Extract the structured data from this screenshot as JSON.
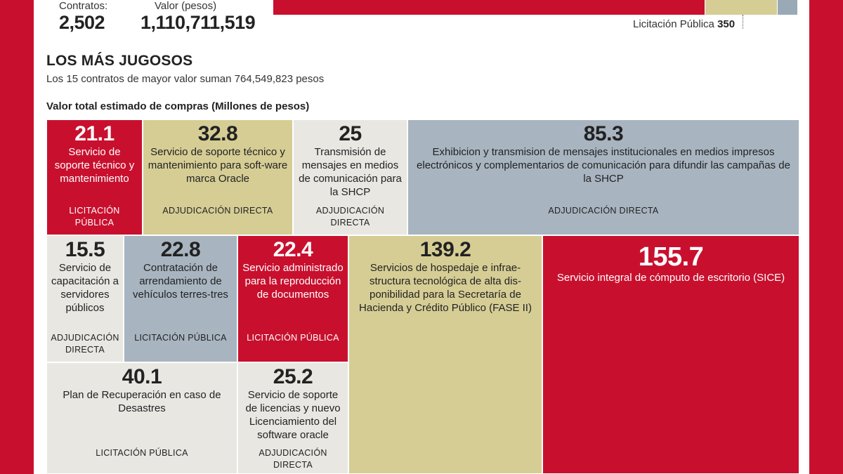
{
  "header": {
    "contracts_label": "Contratos:",
    "contracts_value": "2,502",
    "value_label": "Valor (pesos)",
    "value_value": "1,110,711,519",
    "top_annotation_label": "Licitación Pública",
    "top_annotation_value": "350"
  },
  "section": {
    "title": "LOS MÁS JUGOSOS",
    "subtitle": "Los 15 contratos de mayor valor suman 764,549,823 pesos"
  },
  "chart_data": {
    "type": "treemap",
    "title": "Valor total  estimado de compras (Millones de pesos)",
    "unit": "Millones de pesos",
    "colors": {
      "Licitación Pública": "#c8102e",
      "Adjudicación Directa": "#d6cd95",
      "lightgray": "#e8e7e2",
      "bluegray": "#a8b5c0"
    },
    "items": [
      {
        "value": 21.1,
        "label": "21.1",
        "description": "Servicio de soporte técnico y mantenimiento",
        "procedure": "LICITACIÓN PÚBLICA",
        "color": "red"
      },
      {
        "value": 32.8,
        "label": "32.8",
        "description": "Servicio de soporte técnico y mantenimiento para soft-ware marca Oracle",
        "procedure": "ADJUDICACIÓN DIRECTA",
        "color": "khaki"
      },
      {
        "value": 25,
        "label": "25",
        "description": "Transmisión de mensajes en medios de comunicación para la SHCP",
        "procedure": "ADJUDICACIÓN DIRECTA",
        "color": "lightgray"
      },
      {
        "value": 85.3,
        "label": "85.3",
        "description": "Exhibicion y transmision de mensajes institucionales en medios impresos electrónicos y complementarios de comunicación para difundir las campañas de la SHCP",
        "procedure": "ADJUDICACIÓN DIRECTA",
        "color": "bluegray"
      },
      {
        "value": 15.5,
        "label": "15.5",
        "description": "Servicio de capacitación a servidores públicos",
        "procedure": "ADJUDICACIÓN DIRECTA",
        "color": "lightgray"
      },
      {
        "value": 22.8,
        "label": "22.8",
        "description": "Contratación de arrendamiento de vehículos terres-tres",
        "procedure": "LICITACIÓN PÚBLICA",
        "color": "bluegray"
      },
      {
        "value": 22.4,
        "label": "22.4",
        "description": "Servicio administrado para la reproducción de documentos",
        "procedure": "LICITACIÓN PÚBLICA",
        "color": "red"
      },
      {
        "value": 139.2,
        "label": "139.2",
        "description": "Servicios de hospedaje e infrae-structura tecnológica de alta dis-ponibilidad para la Secretaría de Hacienda y Crédito Público (FASE II)",
        "procedure": "",
        "color": "khaki"
      },
      {
        "value": 155.7,
        "label": "155.7",
        "description": "Servicio integral de cómputo de escritorio (SICE)",
        "procedure": "",
        "color": "red"
      },
      {
        "value": 40.1,
        "label": "40.1",
        "description": "Plan de Recuperación en caso de Desastres",
        "procedure": "LICITACIÓN PÚBLICA",
        "color": "lightgray"
      },
      {
        "value": 25.2,
        "label": "25.2",
        "description": "Servicio de soporte de licencias y nuevo Licenciamiento del software oracle",
        "procedure": "ADJUDICACIÓN DIRECTA",
        "color": "lightgray"
      }
    ]
  }
}
